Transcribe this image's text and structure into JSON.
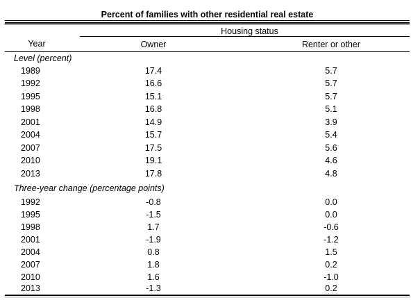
{
  "page": {
    "background": "#ffffff",
    "text_color": "#000000",
    "rule_dark_color": "#000000",
    "rule_light_color": "#8a8a8a"
  },
  "chart_data": {
    "type": "table",
    "title": "Percent of families with other residential real estate",
    "group_header": "Housing status",
    "columns": [
      "Year",
      "Owner",
      "Renter or other"
    ],
    "sections": [
      {
        "label": "Level (percent)",
        "rows": [
          {
            "year": "1989",
            "owner": "17.4",
            "renter": "5.7"
          },
          {
            "year": "1992",
            "owner": "16.6",
            "renter": "5.7"
          },
          {
            "year": "1995",
            "owner": "15.1",
            "renter": "5.7"
          },
          {
            "year": "1998",
            "owner": "16.8",
            "renter": "5.1"
          },
          {
            "year": "2001",
            "owner": "14.9",
            "renter": "3.9"
          },
          {
            "year": "2004",
            "owner": "15.7",
            "renter": "5.4"
          },
          {
            "year": "2007",
            "owner": "17.5",
            "renter": "5.6"
          },
          {
            "year": "2010",
            "owner": "19.1",
            "renter": "4.6"
          },
          {
            "year": "2013",
            "owner": "17.8",
            "renter": "4.8"
          }
        ]
      },
      {
        "label": "Three-year change (percentage points)",
        "rows": [
          {
            "year": "1992",
            "owner": "-0.8",
            "renter": "0.0"
          },
          {
            "year": "1995",
            "owner": "-1.5",
            "renter": "0.0"
          },
          {
            "year": "1998",
            "owner": "1.7",
            "renter": "-0.6"
          },
          {
            "year": "2001",
            "owner": "-1.9",
            "renter": "-1.2"
          },
          {
            "year": "2004",
            "owner": "0.8",
            "renter": "1.5"
          },
          {
            "year": "2007",
            "owner": "1.8",
            "renter": "0.2"
          },
          {
            "year": "2010",
            "owner": "1.6",
            "renter": "-1.0"
          },
          {
            "year": "2013",
            "owner": "-1.3",
            "renter": "0.2"
          }
        ]
      }
    ]
  }
}
